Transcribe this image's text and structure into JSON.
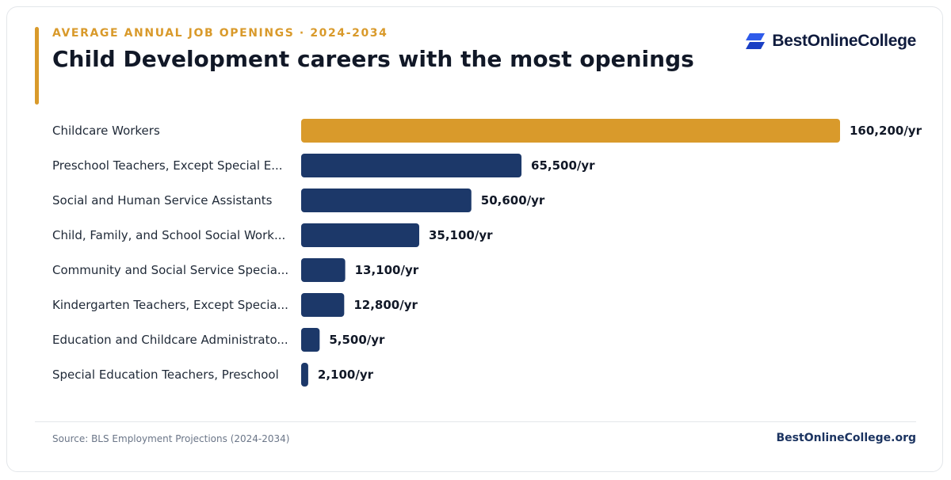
{
  "header": {
    "eyebrow": "AVERAGE ANNUAL JOB OPENINGS · 2024-2034",
    "title": "Child Development careers with the most openings"
  },
  "brand": {
    "name": "BestOnlineCollege",
    "icon": "brand-logo-icon"
  },
  "colors": {
    "accent": "#d99a2b",
    "bar_primary": "#1c3869",
    "bar_highlight": "#d99a2b",
    "text_dark": "#111827"
  },
  "chart_data": {
    "type": "bar",
    "orientation": "horizontal",
    "title": "Child Development careers with the most openings",
    "xlabel": "",
    "ylabel": "",
    "xlim": [
      0,
      160200
    ],
    "grid": false,
    "categories": [
      "Childcare Workers",
      "Preschool Teachers, Except Special E...",
      "Social and Human Service Assistants",
      "Child, Family, and School Social Work...",
      "Community and Social Service Specia...",
      "Kindergarten Teachers, Except Specia...",
      "Education and Childcare Administrato...",
      "Special Education Teachers, Preschool"
    ],
    "values": [
      160200,
      65500,
      50600,
      35100,
      13100,
      12800,
      5500,
      2100
    ],
    "value_labels": [
      "160,200/yr",
      "65,500/yr",
      "50,600/yr",
      "35,100/yr",
      "13,100/yr",
      "12,800/yr",
      "5,500/yr",
      "2,100/yr"
    ],
    "highlight_index": 0
  },
  "footer": {
    "source": "Source: BLS Employment Projections (2024-2034)",
    "site": "BestOnlineCollege.org"
  }
}
